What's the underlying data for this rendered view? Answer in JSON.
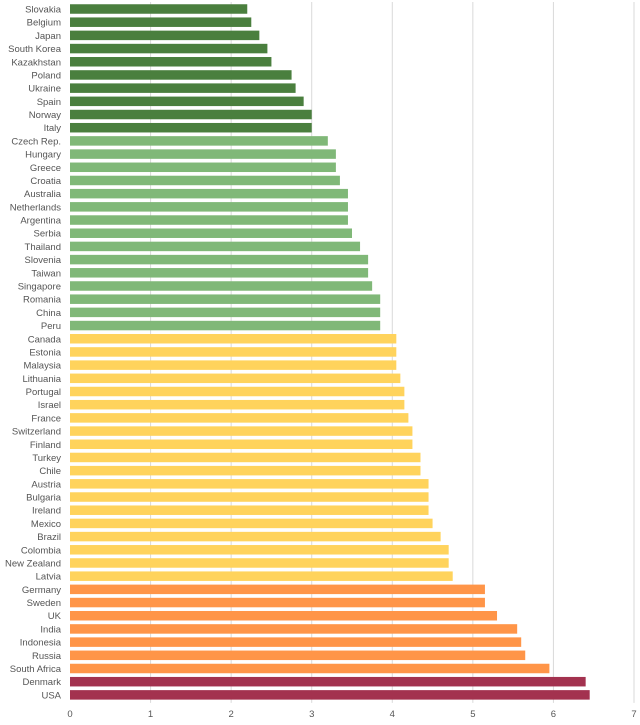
{
  "chart_data": {
    "type": "bar",
    "orientation": "horizontal",
    "title": "",
    "xlabel": "",
    "ylabel": "",
    "xlim": [
      0,
      7
    ],
    "xticks": [
      "0",
      "1",
      "2",
      "3",
      "4",
      "5",
      "6",
      "7"
    ],
    "grid": "vertical",
    "legend": "none",
    "categories": [
      "Slovakia",
      "Belgium",
      "Japan",
      "South Korea",
      "Kazakhstan",
      "Poland",
      "Ukraine",
      "Spain",
      "Norway",
      "Italy",
      "Czech Rep.",
      "Hungary",
      "Greece",
      "Croatia",
      "Australia",
      "Netherlands",
      "Argentina",
      "Serbia",
      "Thailand",
      "Slovenia",
      "Taiwan",
      "Singapore",
      "Romania",
      "China",
      "Peru",
      "Canada",
      "Estonia",
      "Malaysia",
      "Lithuania",
      "Portugal",
      "Israel",
      "France",
      "Switzerland",
      "Finland",
      "Turkey",
      "Chile",
      "Austria",
      "Bulgaria",
      "Ireland",
      "Mexico",
      "Brazil",
      "Colombia",
      "New Zealand",
      "Latvia",
      "Germany",
      "Sweden",
      "UK",
      "India",
      "Indonesia",
      "Russia",
      "South Africa",
      "Denmark",
      "USA"
    ],
    "values": [
      2.2,
      2.25,
      2.35,
      2.45,
      2.5,
      2.75,
      2.8,
      2.9,
      3.0,
      3.0,
      3.2,
      3.3,
      3.3,
      3.35,
      3.45,
      3.45,
      3.45,
      3.5,
      3.6,
      3.7,
      3.7,
      3.75,
      3.85,
      3.85,
      3.85,
      4.05,
      4.05,
      4.05,
      4.1,
      4.15,
      4.15,
      4.2,
      4.25,
      4.25,
      4.35,
      4.35,
      4.45,
      4.45,
      4.45,
      4.5,
      4.6,
      4.7,
      4.7,
      4.75,
      5.15,
      5.15,
      5.3,
      5.55,
      5.6,
      5.65,
      5.95,
      6.4,
      6.45
    ],
    "color_groups": [
      {
        "color": "#4a7f3e",
        "count": 10
      },
      {
        "color": "#80b878",
        "count": 15
      },
      {
        "color": "#ffd35c",
        "count": 19
      },
      {
        "color": "#ff9548",
        "count": 7
      },
      {
        "color": "#a3324f",
        "count": 2
      }
    ],
    "gridline_color": "#d9d9d9"
  }
}
